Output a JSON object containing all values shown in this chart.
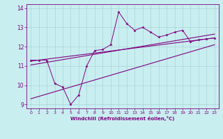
{
  "title": "",
  "xlabel": "Windchill (Refroidissement éolien,°C)",
  "ylabel": "",
  "background_color": "#c8eef0",
  "grid_color": "#aad4d8",
  "line_color": "#800080",
  "xlim": [
    -0.5,
    23.5
  ],
  "ylim": [
    8.8,
    14.2
  ],
  "yticks": [
    9,
    10,
    11,
    12,
    13,
    14
  ],
  "xticks": [
    0,
    1,
    2,
    3,
    4,
    5,
    6,
    7,
    8,
    9,
    10,
    11,
    12,
    13,
    14,
    15,
    16,
    17,
    18,
    19,
    20,
    21,
    22,
    23
  ],
  "scatter_x": [
    0,
    1,
    2,
    3,
    4,
    5,
    6,
    7,
    8,
    9,
    10,
    11,
    12,
    13,
    14,
    15,
    16,
    17,
    18,
    19,
    20,
    21,
    22,
    23
  ],
  "scatter_y": [
    11.3,
    11.3,
    11.3,
    10.1,
    9.9,
    9.0,
    9.5,
    11.0,
    11.8,
    11.85,
    12.1,
    13.8,
    13.2,
    12.85,
    13.0,
    12.75,
    12.5,
    12.6,
    12.75,
    12.85,
    12.25,
    12.35,
    12.4,
    12.45
  ],
  "line1_x": [
    0,
    23
  ],
  "line1_y": [
    11.25,
    12.45
  ],
  "line2_x": [
    0,
    23
  ],
  "line2_y": [
    11.05,
    12.65
  ],
  "line3_x": [
    0,
    23
  ],
  "line3_y": [
    9.3,
    12.1
  ]
}
